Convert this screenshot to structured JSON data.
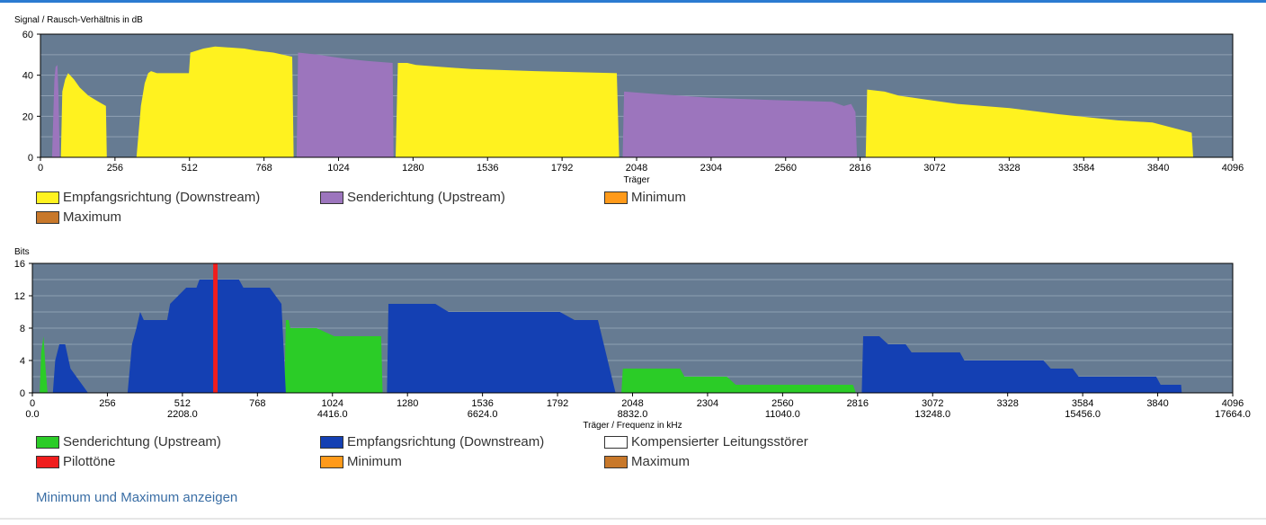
{
  "colors": {
    "plot_bg": "#667b92",
    "gridline": "#8fa0b3",
    "yellow": "#fff21f",
    "purple": "#9c75bd",
    "green": "#2bcc27",
    "blue": "#1440b3",
    "red": "#f01d1d",
    "orange": "#ff9a1a",
    "brown": "#c8782a",
    "white": "#ffffff"
  },
  "chart_data": [
    {
      "type": "area",
      "title": "Signal / Rausch-Verhältnis in dB",
      "ylabel": "Signal / Rausch-Verhältnis in dB",
      "xlabel": "Träger",
      "xlim": [
        0,
        4096
      ],
      "ylim": [
        0,
        60
      ],
      "grid": true,
      "y_ticks": [
        "0",
        "20",
        "40",
        "60"
      ],
      "x_ticks": [
        "0",
        "256",
        "512",
        "768",
        "1024",
        "1280",
        "1536",
        "1792",
        "2048",
        "2304",
        "2560",
        "2816",
        "3072",
        "3328",
        "3584",
        "3840",
        "4096"
      ],
      "series": [
        {
          "name": "Empfangsrichtung (Downstream)",
          "color": "yellow",
          "points": [
            [
              70,
              0
            ],
            [
              75,
              32
            ],
            [
              85,
              38
            ],
            [
              95,
              41
            ],
            [
              115,
              38
            ],
            [
              135,
              34
            ],
            [
              165,
              30
            ],
            [
              200,
              27
            ],
            [
              225,
              25
            ],
            [
              228,
              0
            ],
            [
              330,
              0
            ],
            [
              345,
              25
            ],
            [
              358,
              36
            ],
            [
              370,
              41
            ],
            [
              380,
              42
            ],
            [
              400,
              41
            ],
            [
              420,
              41
            ],
            [
              450,
              41
            ],
            [
              510,
              41
            ],
            [
              515,
              51
            ],
            [
              560,
              53
            ],
            [
              600,
              54
            ],
            [
              700,
              53
            ],
            [
              740,
              52
            ],
            [
              800,
              51
            ],
            [
              865,
              49
            ],
            [
              870,
              0
            ],
            [
              1220,
              0
            ],
            [
              1228,
              46
            ],
            [
              1260,
              46
            ],
            [
              1290,
              45
            ],
            [
              1380,
              44
            ],
            [
              1480,
              43
            ],
            [
              1700,
              42
            ],
            [
              1980,
              41
            ],
            [
              1988,
              0
            ],
            [
              2835,
              0
            ],
            [
              2840,
              33
            ],
            [
              2900,
              32
            ],
            [
              2950,
              30
            ],
            [
              3050,
              28
            ],
            [
              3150,
              26
            ],
            [
              3330,
              24
            ],
            [
              3500,
              21
            ],
            [
              3700,
              18
            ],
            [
              3820,
              17
            ],
            [
              3900,
              14
            ],
            [
              3955,
              12
            ],
            [
              3960,
              0
            ]
          ]
        },
        {
          "name": "Senderichtung (Upstream)",
          "color": "purple",
          "points": [
            [
              40,
              0
            ],
            [
              48,
              38
            ],
            [
              52,
              44
            ],
            [
              58,
              45
            ],
            [
              62,
              30
            ],
            [
              66,
              0
            ],
            [
              880,
              0
            ],
            [
              885,
              51
            ],
            [
              950,
              50
            ],
            [
              1050,
              48
            ],
            [
              1120,
              47
            ],
            [
              1210,
              46
            ],
            [
              1213,
              0
            ],
            [
              2000,
              0
            ],
            [
              2005,
              32
            ],
            [
              2100,
              31
            ],
            [
              2300,
              29
            ],
            [
              2500,
              28
            ],
            [
              2720,
              27
            ],
            [
              2760,
              25
            ],
            [
              2785,
              26
            ],
            [
              2800,
              22
            ],
            [
              2805,
              0
            ]
          ]
        }
      ],
      "legend": [
        {
          "label": "Empfangsrichtung (Downstream)",
          "color": "yellow"
        },
        {
          "label": "Senderichtung (Upstream)",
          "color": "purple"
        },
        {
          "label": "Minimum",
          "color": "orange"
        },
        {
          "label": "Maximum",
          "color": "brown"
        }
      ]
    },
    {
      "type": "area",
      "title": "Bits",
      "ylabel": "Bits",
      "xlabel": "Träger / Frequenz in kHz",
      "xlim": [
        0,
        4096
      ],
      "ylim": [
        0,
        16
      ],
      "grid": true,
      "y_ticks": [
        "0",
        "4",
        "8",
        "12",
        "16"
      ],
      "x_ticks": [
        "0",
        "256",
        "512",
        "768",
        "1024",
        "1280",
        "1536",
        "1792",
        "2048",
        "2304",
        "2560",
        "2816",
        "3072",
        "3328",
        "3584",
        "3840",
        "4096"
      ],
      "x_freq_ticks": [
        {
          "carrier": 0,
          "label": "0.0"
        },
        {
          "carrier": 512,
          "label": "2208.0"
        },
        {
          "carrier": 1024,
          "label": "4416.0"
        },
        {
          "carrier": 1536,
          "label": "6624.0"
        },
        {
          "carrier": 2048,
          "label": "8832.0"
        },
        {
          "carrier": 2560,
          "label": "11040.0"
        },
        {
          "carrier": 3072,
          "label": "13248.0"
        },
        {
          "carrier": 3584,
          "label": "15456.0"
        },
        {
          "carrier": 4096,
          "label": "17664.0"
        }
      ],
      "series": [
        {
          "name": "Senderichtung (Upstream)",
          "color": "green",
          "points": [
            [
              25,
              0
            ],
            [
              30,
              5
            ],
            [
              38,
              7
            ],
            [
              45,
              3
            ],
            [
              52,
              0
            ],
            [
              860,
              0
            ],
            [
              865,
              9
            ],
            [
              875,
              9
            ],
            [
              880,
              8
            ],
            [
              970,
              8
            ],
            [
              1030,
              7
            ],
            [
              1190,
              7
            ],
            [
              1195,
              0
            ],
            [
              2010,
              0
            ],
            [
              2015,
              3
            ],
            [
              2120,
              3
            ],
            [
              2210,
              3
            ],
            [
              2225,
              2
            ],
            [
              2370,
              2
            ],
            [
              2400,
              1
            ],
            [
              2800,
              1
            ],
            [
              2810,
              0
            ]
          ]
        },
        {
          "name": "Empfangsrichtung (Downstream)",
          "color": "blue",
          "points": [
            [
              70,
              0
            ],
            [
              78,
              4
            ],
            [
              92,
              6
            ],
            [
              112,
              6
            ],
            [
              130,
              3
            ],
            [
              150,
              2
            ],
            [
              170,
              1
            ],
            [
              190,
              0
            ],
            [
              325,
              0
            ],
            [
              340,
              6
            ],
            [
              355,
              8
            ],
            [
              368,
              10
            ],
            [
              380,
              9
            ],
            [
              460,
              9
            ],
            [
              470,
              11
            ],
            [
              525,
              13
            ],
            [
              560,
              13
            ],
            [
              570,
              14
            ],
            [
              705,
              14
            ],
            [
              720,
              13
            ],
            [
              810,
              13
            ],
            [
              850,
              11
            ],
            [
              865,
              0
            ],
            [
              1210,
              0
            ],
            [
              1215,
              11
            ],
            [
              1375,
              11
            ],
            [
              1420,
              10
            ],
            [
              1800,
              10
            ],
            [
              1850,
              9
            ],
            [
              1930,
              9
            ],
            [
              1990,
              0
            ],
            [
              2830,
              0
            ],
            [
              2835,
              7
            ],
            [
              2890,
              7
            ],
            [
              2920,
              6
            ],
            [
              2980,
              6
            ],
            [
              3000,
              5
            ],
            [
              3165,
              5
            ],
            [
              3180,
              4
            ],
            [
              3450,
              4
            ],
            [
              3475,
              3
            ],
            [
              3550,
              3
            ],
            [
              3570,
              2
            ],
            [
              3835,
              2
            ],
            [
              3850,
              1
            ],
            [
              3920,
              1
            ],
            [
              3922,
              0
            ]
          ]
        },
        {
          "name": "Pilottöne",
          "color": "red",
          "points": [
            [
              617,
              0
            ],
            [
              617,
              16
            ],
            [
              632,
              16
            ],
            [
              632,
              0
            ]
          ]
        }
      ],
      "legend": [
        {
          "label": "Senderichtung (Upstream)",
          "color": "green"
        },
        {
          "label": "Empfangsrichtung (Downstream)",
          "color": "blue"
        },
        {
          "label": "Kompensierter Leitungsstörer",
          "color": "white"
        },
        {
          "label": "Pilottöne",
          "color": "red"
        },
        {
          "label": "Minimum",
          "color": "orange"
        },
        {
          "label": "Maximum",
          "color": "brown"
        }
      ]
    }
  ],
  "toggle_link": "Minimum und Maximum anzeigen"
}
